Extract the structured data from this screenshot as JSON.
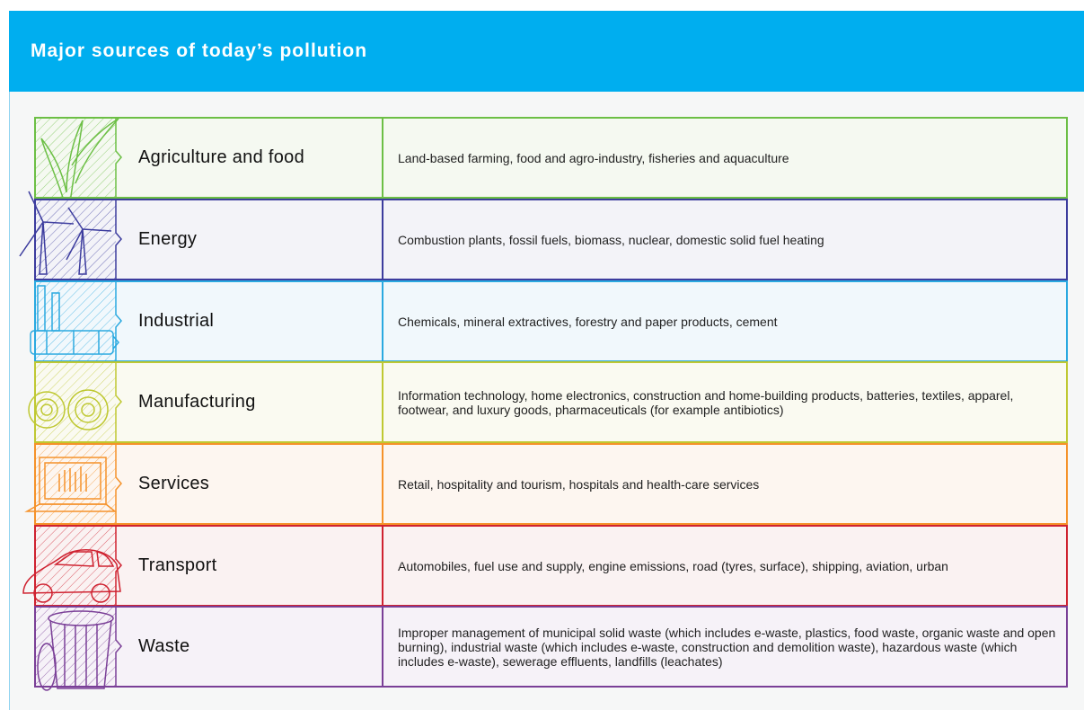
{
  "header": {
    "title": "Major sources of today’s pollution"
  },
  "table": {
    "rows": [
      {
        "name": "Agriculture and food",
        "description": "Land-based farming, food and agro-industry, fisheries and aquaculture"
      },
      {
        "name": "Energy",
        "description": "Combustion plants, fossil fuels, biomass, nuclear, domestic solid fuel heating"
      },
      {
        "name": "Industrial",
        "description": "Chemicals, mineral extractives, forestry and paper products, cement"
      },
      {
        "name": "Manufacturing",
        "description": "Information technology, home electronics, construction and home-building products, batteries, textiles, apparel, footwear, and luxury goods, pharmaceuticals (for example antibiotics)"
      },
      {
        "name": "Services",
        "description": "Retail, hospitality and tourism, hospitals and health-care services"
      },
      {
        "name": "Transport",
        "description": "Automobiles, fuel use and supply, engine emissions, road (tyres, surface), shipping, aviation, urban"
      },
      {
        "name": "Waste",
        "description": "Improper management of municipal solid waste (which includes e-waste, plastics, food waste, organic waste and open burning), industrial waste (which includes e-waste, construction and demolition waste), hazardous waste (which includes e-waste), sewerage effluents, landfills (leachates)"
      }
    ]
  }
}
